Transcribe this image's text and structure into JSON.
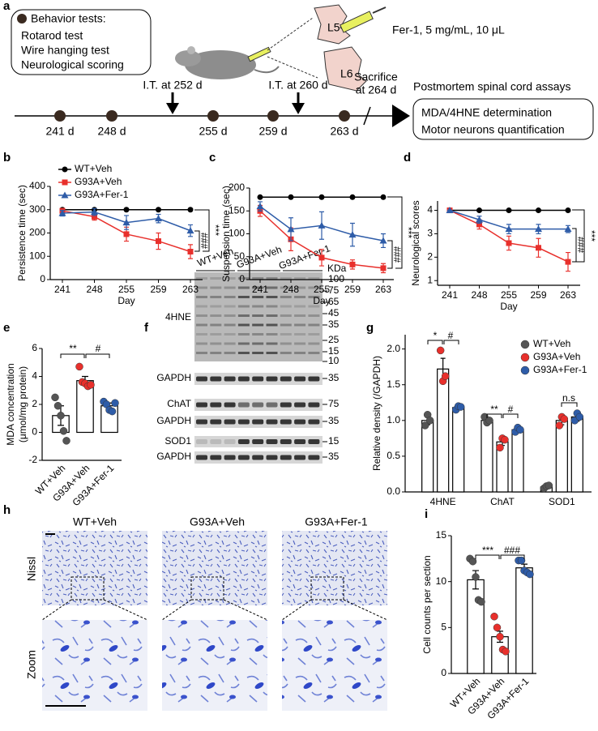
{
  "panel_a": {
    "label": "a",
    "behavior_box": [
      "Behavior tests:",
      "Rotarod test",
      "Wire hanging test",
      "Neurological scoring"
    ],
    "injection": "Fer-1, 5 mg/mL, 10 μL",
    "vertebrae": [
      "L5",
      "L6"
    ],
    "injections": [
      "I.T. at 252 d",
      "I.T. at 260 d"
    ],
    "sacrifice": [
      "Sacrifice",
      "at 264 d"
    ],
    "timeline": [
      "241 d",
      "248 d",
      "255 d",
      "259 d",
      "263 d"
    ],
    "assays_title": "Postmortem spinal cord assays",
    "assays": [
      "MDA/4HNE determination",
      "Motor neurons quantification"
    ]
  },
  "chart_data": [
    {
      "type": "line",
      "panel": "b",
      "y_label": "Persistence time (sec)",
      "x_label": "Day",
      "categories": [
        "241",
        "248",
        "255",
        "259",
        "263"
      ],
      "ylim": [
        0,
        400
      ],
      "yticks": [
        0,
        100,
        200,
        300,
        400
      ],
      "legend": true,
      "series": [
        {
          "name": "WT+Veh",
          "color": "#000000",
          "marker": "circle",
          "values": [
            300,
            300,
            300,
            300,
            300
          ]
        },
        {
          "name": "G93A+Veh",
          "color": "#e8302c",
          "marker": "square",
          "values": [
            295,
            270,
            195,
            165,
            120
          ],
          "errors": [
            10,
            15,
            30,
            35,
            30
          ]
        },
        {
          "name": "G93A+Fer-1",
          "color": "#2e5ca8",
          "marker": "triangle",
          "values": [
            285,
            290,
            245,
            262,
            210
          ],
          "errors": [
            12,
            15,
            30,
            18,
            25
          ]
        }
      ],
      "annotations": [
        "***",
        "###"
      ]
    },
    {
      "type": "line",
      "panel": "c",
      "y_label": "Suspension time (sec)",
      "x_label": "Day",
      "categories": [
        "241",
        "248",
        "255",
        "259",
        "263"
      ],
      "ylim": [
        0,
        200
      ],
      "yticks": [
        0,
        50,
        100,
        150,
        200
      ],
      "legend": false,
      "series": [
        {
          "name": "WT+Veh",
          "color": "#000000",
          "marker": "circle",
          "values": [
            180,
            180,
            180,
            180,
            180
          ]
        },
        {
          "name": "G93A+Veh",
          "color": "#e8302c",
          "marker": "square",
          "values": [
            150,
            88,
            48,
            33,
            25
          ],
          "errors": [
            12,
            25,
            18,
            10,
            10
          ]
        },
        {
          "name": "G93A+Fer-1",
          "color": "#2e5ca8",
          "marker": "triangle",
          "values": [
            160,
            110,
            118,
            98,
            85
          ],
          "errors": [
            10,
            25,
            30,
            25,
            15
          ]
        }
      ],
      "annotations": [
        "***",
        "###"
      ]
    },
    {
      "type": "line",
      "panel": "d",
      "y_label": "Neurological scores",
      "x_label": "Day",
      "categories": [
        "241",
        "248",
        "255",
        "259",
        "263"
      ],
      "ylim": [
        0.8,
        4.4
      ],
      "yticks": [
        1,
        2,
        3,
        4
      ],
      "legend": false,
      "series": [
        {
          "name": "WT+Veh",
          "color": "#000000",
          "marker": "circle",
          "values": [
            4,
            4,
            4,
            4,
            4
          ]
        },
        {
          "name": "G93A+Veh",
          "color": "#e8302c",
          "marker": "square",
          "values": [
            4,
            3.4,
            2.6,
            2.4,
            1.8
          ],
          "errors": [
            0,
            0.2,
            0.3,
            0.4,
            0.4
          ]
        },
        {
          "name": "G93A+Fer-1",
          "color": "#2e5ca8",
          "marker": "triangle",
          "values": [
            4,
            3.6,
            3.2,
            3.2,
            3.2
          ],
          "errors": [
            0,
            0.15,
            0.2,
            0.2,
            0.15
          ]
        }
      ],
      "annotations": [
        "***",
        "###"
      ]
    },
    {
      "type": "bar",
      "panel": "e",
      "y_label": [
        "MDA concentration",
        "(μmol/mg protein)"
      ],
      "categories": [
        "WT+Veh",
        "G93A+Veh",
        "G93A+Fer-1"
      ],
      "values": [
        1.2,
        3.7,
        1.9
      ],
      "errors": [
        0.7,
        0.3,
        0.2
      ],
      "points": [
        [
          2.5,
          1.9,
          1.2,
          0.1,
          -0.6
        ],
        [
          4.7,
          3.6,
          3.5,
          3.3,
          3.4
        ],
        [
          2.2,
          2.0,
          1.6,
          1.5,
          2.1
        ]
      ],
      "colors": [
        "#555555",
        "#e8302c",
        "#2e5ca8"
      ],
      "ylim": [
        -2,
        6
      ],
      "yticks": [
        -2,
        0,
        2,
        4,
        6
      ],
      "annotations": [
        "**",
        "#"
      ]
    },
    {
      "type": "grouped_bar",
      "panel": "g",
      "y_label": "Relative density (/GAPDH)",
      "categories": [
        "4HNE",
        "ChAT",
        "SOD1"
      ],
      "ylim": [
        0,
        2.2
      ],
      "yticks": [
        {
          "value": 0,
          "label": "0.0"
        },
        0.5,
        {
          "value": 1,
          "label": "1.0"
        },
        1.5,
        {
          "value": 2,
          "label": "2.0"
        }
      ],
      "legend": true,
      "series": [
        {
          "name": "WT+Veh",
          "color": "#555555",
          "values": [
            1.0,
            1.0,
            0.07
          ],
          "errors": [
            0.06,
            0.04,
            0.02
          ],
          "points": [
            [
              0.93,
              1.08,
              1.0
            ],
            [
              1.05,
              0.97,
              1.0
            ],
            [
              0.05,
              0.08,
              0.09
            ]
          ]
        },
        {
          "name": "G93A+Veh",
          "color": "#e8302c",
          "values": [
            1.72,
            0.7,
            1.0
          ],
          "errors": [
            0.15,
            0.05,
            0.06
          ],
          "points": [
            [
              1.98,
              1.55,
              1.62
            ],
            [
              0.62,
              0.75,
              0.73
            ],
            [
              0.93,
              1.05,
              1.02
            ]
          ]
        },
        {
          "name": "G93A+Fer-1",
          "color": "#2e5ca8",
          "values": [
            1.18,
            0.87,
            1.05
          ],
          "errors": [
            0.03,
            0.03,
            0.06
          ],
          "points": [
            [
              1.15,
              1.2,
              1.19
            ],
            [
              0.84,
              0.9,
              0.87
            ],
            [
              1.0,
              1.1,
              1.05
            ]
          ]
        }
      ],
      "annotations": [
        "*",
        "#",
        "**",
        "#",
        "n.s"
      ]
    },
    {
      "type": "bar",
      "panel": "i",
      "y_label": "Cell counts per section",
      "categories": [
        "WT+Veh",
        "G93A+Veh",
        "G93A+Fer-1"
      ],
      "values": [
        10.2,
        4.0,
        11.5
      ],
      "errors": [
        1.0,
        0.6,
        0.4
      ],
      "points": [
        [
          12.5,
          12.2,
          10.5,
          8,
          7.8
        ],
        [
          6.2,
          5,
          4,
          2.6,
          2.4
        ],
        [
          12.3,
          12.3,
          11.2,
          11,
          10.8
        ]
      ],
      "colors": [
        "#555555",
        "#e8302c",
        "#2e5ca8"
      ],
      "ylim": [
        0,
        15
      ],
      "yticks": [
        0,
        5,
        10,
        15
      ],
      "annotations": [
        "***",
        "###"
      ]
    }
  ],
  "panel_f": {
    "label": "f",
    "groups": [
      "WT+Veh",
      "G93A+Veh",
      "G93A+Fer-1"
    ],
    "unit": "KDa",
    "rows": [
      "4HNE",
      "GAPDH",
      "ChAT",
      "GAPDH",
      "SOD1",
      "GAPDH"
    ],
    "markers": [
      "100",
      "75",
      "65",
      "45",
      "35",
      "25",
      "15",
      "10",
      "35",
      "75",
      "35",
      "15",
      "35"
    ]
  },
  "panel_h": {
    "label": "h",
    "columns": [
      "WT+Veh",
      "G93A+Veh",
      "G93A+Fer-1"
    ],
    "rows": [
      "Nissl",
      "Zoom"
    ]
  }
}
